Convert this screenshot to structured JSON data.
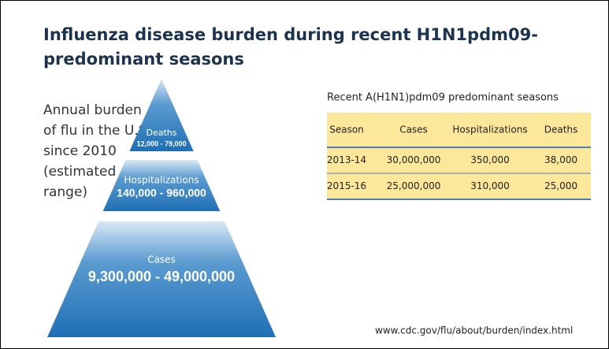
{
  "header": {
    "title": [
      "Influenza disease burden during recent H1N1pdm09-",
      "predominant seasons"
    ]
  },
  "side_text": [
    "Annual burden",
    "of flu in the U.S.",
    "since 2010",
    "(estimated",
    "range)"
  ],
  "pyramid": [
    {
      "label": "Deaths",
      "range": "12,000 - 79,000"
    },
    {
      "label": "Hospitalizations",
      "range": "140,000 - 960,000"
    },
    {
      "label": "Cases",
      "range": "9,300,000 - 49,000,000"
    }
  ],
  "table": {
    "title": "Recent A(H1N1)pdm09 predominant seasons",
    "columns": [
      "Season",
      "Cases",
      "Hospitalizations",
      "Deaths"
    ],
    "rows": [
      [
        "2013-14",
        "30,000,000",
        "350,000",
        "38,000"
      ],
      [
        "2015-16",
        "25,000,000",
        "310,000",
        "25,000"
      ]
    ]
  },
  "footer": {
    "url": "www.cdc.gov/flu/about/burden/index.html"
  }
}
